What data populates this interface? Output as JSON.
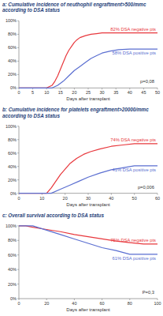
{
  "chart_data": [
    {
      "type": "line",
      "title": "a: Cumulative incidence of neuthophil engraftment>500/mmc according to DSA status",
      "x_label": "Days after transplant",
      "xlim": [
        0,
        50
      ],
      "xticks": [
        0,
        5,
        10,
        15,
        20,
        25,
        30,
        35,
        40,
        45,
        50
      ],
      "ylim": [
        0,
        100
      ],
      "yticks": [
        {
          "value": 0,
          "label": "0%"
        },
        {
          "value": 20,
          "label": "20%"
        },
        {
          "value": 40,
          "label": "40%"
        },
        {
          "value": 60,
          "label": "60%"
        },
        {
          "value": 80,
          "label": "80%"
        },
        {
          "value": 100,
          "label": "100%"
        }
      ],
      "grid": false,
      "annotations": [
        "p=0,08"
      ],
      "series": [
        {
          "name": "82% DSA negative pts",
          "color": "#e8383d",
          "x": [
            0,
            10,
            12,
            13,
            14,
            15,
            16,
            17,
            18,
            19,
            20,
            21,
            22,
            24,
            26,
            28,
            30,
            35,
            50
          ],
          "values": [
            0,
            0,
            4,
            10,
            18,
            28,
            38,
            48,
            56,
            62,
            68,
            72,
            75,
            78,
            80,
            81,
            82,
            82,
            82
          ]
        },
        {
          "name": "58% DSA positive pts",
          "color": "#5b6fd1",
          "x": [
            0,
            12,
            14,
            16,
            18,
            20,
            22,
            24,
            26,
            28,
            30,
            33,
            36,
            40,
            50
          ],
          "values": [
            0,
            0,
            4,
            10,
            18,
            26,
            32,
            38,
            44,
            48,
            52,
            55,
            57,
            58,
            58
          ]
        }
      ]
    },
    {
      "type": "line",
      "title": "b: Cumulative incidence for platelets engraftment>20000/mmc according to DSA status",
      "x_label": "Days after transplant",
      "xlim": [
        0,
        60
      ],
      "xticks": [
        0,
        10,
        20,
        30,
        40,
        50,
        60
      ],
      "ylim": [
        0,
        100
      ],
      "yticks": [
        {
          "value": 0,
          "label": "0%"
        },
        {
          "value": 20,
          "label": "20%"
        },
        {
          "value": 40,
          "label": "40%"
        },
        {
          "value": 60,
          "label": "60%"
        },
        {
          "value": 80,
          "label": "80%"
        },
        {
          "value": 100,
          "label": "100%"
        }
      ],
      "grid": false,
      "annotations": [
        "p=0,006"
      ],
      "series": [
        {
          "name": "74% DSA negative pts",
          "color": "#e8383d",
          "x": [
            0,
            12,
            14,
            16,
            18,
            20,
            22,
            25,
            28,
            31,
            35,
            40,
            45,
            50,
            60
          ],
          "values": [
            0,
            0,
            8,
            18,
            28,
            36,
            44,
            52,
            58,
            62,
            66,
            70,
            72,
            74,
            74
          ]
        },
        {
          "name": "41% DSA positive pts",
          "color": "#5b6fd1",
          "x": [
            0,
            14,
            18,
            22,
            26,
            30,
            35,
            40,
            45,
            50,
            60
          ],
          "values": [
            0,
            0,
            6,
            12,
            18,
            24,
            30,
            35,
            38,
            41,
            41
          ]
        }
      ]
    },
    {
      "type": "line",
      "title": "c: Overall survival according to DSA status",
      "x_label": "Days after transplant",
      "xlim": [
        0,
        100
      ],
      "xticks": [
        0,
        20,
        40,
        60,
        80,
        100
      ],
      "ylim": [
        0,
        100
      ],
      "yticks": [
        {
          "value": 0,
          "label": "0%"
        },
        {
          "value": 20,
          "label": "20%"
        },
        {
          "value": 40,
          "label": "40%"
        },
        {
          "value": 60,
          "label": "60%"
        },
        {
          "value": 80,
          "label": "80%"
        },
        {
          "value": 100,
          "label": "100%"
        }
      ],
      "grid": false,
      "annotations": [
        "P=0,3"
      ],
      "series": [
        {
          "name": "75% DSA negative pts",
          "color": "#e8383d",
          "x": [
            0,
            5,
            10,
            20,
            30,
            40,
            50,
            60,
            70,
            80,
            90,
            100
          ],
          "values": [
            100,
            100,
            98,
            95,
            92,
            88,
            85,
            82,
            79,
            77,
            75,
            75
          ]
        },
        {
          "name": "61% DSA positive pts",
          "color": "#5b6fd1",
          "x": [
            0,
            10,
            20,
            30,
            40,
            50,
            60,
            70,
            80,
            100
          ],
          "values": [
            100,
            100,
            94,
            88,
            82,
            76,
            70,
            66,
            61,
            61
          ]
        }
      ]
    }
  ]
}
